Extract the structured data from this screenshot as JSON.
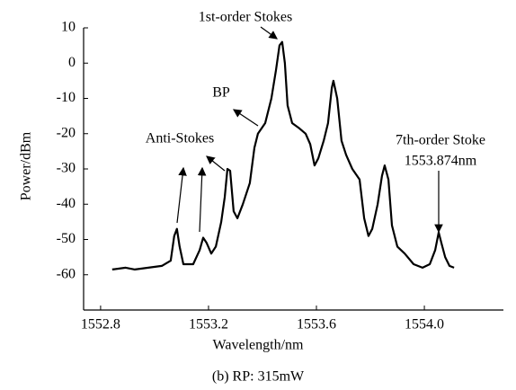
{
  "chart_data": {
    "type": "line",
    "y_label": "Power/dBm",
    "x_label": "Wavelength/nm",
    "caption": "(b) RP: 315mW",
    "annotations": [
      "1st-order Stokes",
      "BP",
      "Anti-Stokes",
      "7th-order Stoke",
      "1553.874nm"
    ],
    "xlim": [
      1552.737,
      1554.293
    ],
    "xticks": [
      1552.8,
      1553.2,
      1553.6,
      {
        "value": 1554,
        "label": "1554.0"
      }
    ],
    "ylim": [
      -70,
      10
    ],
    "yticks": [
      -60,
      -50,
      -40,
      -30,
      -20,
      -10,
      0,
      10
    ],
    "series": [
      {
        "color": "#000000",
        "x": [
          1552.843,
          1552.893,
          1552.927,
          1552.977,
          1553.027,
          1553.06,
          1553.073,
          1553.083,
          1553.093,
          1553.107,
          1553.143,
          1553.167,
          1553.18,
          1553.193,
          1553.21,
          1553.227,
          1553.247,
          1553.26,
          1553.27,
          1553.28,
          1553.293,
          1553.307,
          1553.327,
          1553.353,
          1553.37,
          1553.383,
          1553.41,
          1553.433,
          1553.45,
          1553.463,
          1553.473,
          1553.483,
          1553.493,
          1553.51,
          1553.537,
          1553.56,
          1553.577,
          1553.593,
          1553.607,
          1553.627,
          1553.643,
          1553.657,
          1553.663,
          1553.677,
          1553.693,
          1553.71,
          1553.733,
          1553.76,
          1553.777,
          1553.793,
          1553.807,
          1553.827,
          1553.843,
          1553.853,
          1553.867,
          1553.88,
          1553.9,
          1553.927,
          1553.96,
          1553.993,
          1554.02,
          1554.04,
          1554.053,
          1554.063,
          1554.077,
          1554.093,
          1554.11
        ],
        "values": [
          -58.5,
          -58,
          -58.5,
          -58,
          -57.5,
          -56,
          -49,
          -47,
          -52,
          -57,
          -57,
          -53,
          -49.5,
          -51,
          -54,
          -52,
          -45,
          -38,
          -30,
          -30.5,
          -42,
          -44,
          -40,
          -34,
          -24,
          -20,
          -17,
          -10,
          -2,
          5,
          6,
          0,
          -12,
          -17,
          -18.5,
          -20,
          -23,
          -29,
          -27,
          -22,
          -17,
          -7,
          -5,
          -10,
          -22,
          -26,
          -30,
          -33,
          -44,
          -49,
          -47,
          -40,
          -32,
          -29,
          -33,
          -46,
          -52,
          -54,
          -57,
          -58,
          -57,
          -53,
          -48,
          -51,
          -55,
          -57.5,
          -58
        ]
      }
    ]
  }
}
